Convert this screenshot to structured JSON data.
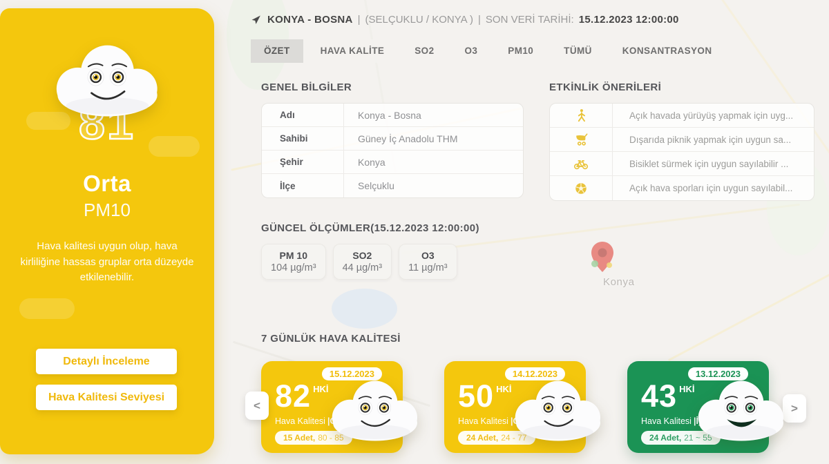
{
  "colors": {
    "yellow": "#f4c70d",
    "green": "#1b9355"
  },
  "map": {
    "city_label": "Konya"
  },
  "sidebar": {
    "aqi_value": "81",
    "level": "Orta",
    "pollutant": "PM10",
    "description": "Hava kalitesi uygun olup, hava kirliliğine hassas gruplar orta düzeyde etkilenebilir.",
    "detail_button": "Detaylı İnceleme",
    "level_button": "Hava Kalitesi Seviyesi"
  },
  "header": {
    "station": "KONYA - BOSNA",
    "sep": "|",
    "region": "(SELÇUKLU / KONYA )",
    "date_label": "SON VERİ TARİHİ:",
    "date_value": "15.12.2023 12:00:00"
  },
  "tabs": [
    {
      "label": "ÖZET"
    },
    {
      "label": "HAVA KALİTE"
    },
    {
      "label": "SO2"
    },
    {
      "label": "O3"
    },
    {
      "label": "PM10"
    },
    {
      "label": "TÜMÜ"
    },
    {
      "label": "KONSANTRASYON"
    }
  ],
  "general_info": {
    "title": "GENEL BİLGİLER",
    "rows": [
      {
        "label": "Adı",
        "value": "Konya - Bosna"
      },
      {
        "label": "Sahibi",
        "value": "Güney İç Anadolu THM"
      },
      {
        "label": "Şehir",
        "value": "Konya"
      },
      {
        "label": "İlçe",
        "value": "Selçuklu"
      }
    ]
  },
  "activities": {
    "title": "ETKİNLİK ÖNERİLERİ",
    "rows": [
      {
        "icon": "walking-icon",
        "text": "Açık havada yürüyüş yapmak için uyg..."
      },
      {
        "icon": "stroller-icon",
        "text": "Dışarıda piknik yapmak için uygun sa..."
      },
      {
        "icon": "bicycle-icon",
        "text": "Bisiklet sürmek için uygun sayılabilir ..."
      },
      {
        "icon": "football-icon",
        "text": "Açık hava sporları için uygun sayılabil..."
      }
    ]
  },
  "measurements": {
    "title": "GÜNCEL ÖLÇÜMLER(15.12.2023 12:00:00)",
    "items": [
      {
        "name": "PM 10",
        "value": "104 µg/m³"
      },
      {
        "name": "SO2",
        "value": "44 µg/m³"
      },
      {
        "name": "O3",
        "value": "11 µg/m³"
      }
    ]
  },
  "weekly": {
    "title": "7 GÜNLÜK HAVA KALİTESİ",
    "prev": "<",
    "next": ">",
    "help": "?",
    "cards": [
      {
        "date": "15.12.2023",
        "value": "82",
        "unit": "HKİ",
        "quality_label": "Hava Kalitesi",
        "level": "|Orta",
        "count": "15 Adet,",
        "range": "80 - 85",
        "tone": "yellow"
      },
      {
        "date": "14.12.2023",
        "value": "50",
        "unit": "HKİ",
        "quality_label": "Hava Kalitesi",
        "level": "|Orta",
        "count": "24 Adet,",
        "range": "24 - 77",
        "tone": "yellow"
      },
      {
        "date": "13.12.2023",
        "value": "43",
        "unit": "HKİ",
        "quality_label": "Hava Kalitesi",
        "level": "|İyi",
        "count": "24 Adet,",
        "range": "21 ~ 55",
        "tone": "green"
      }
    ]
  }
}
